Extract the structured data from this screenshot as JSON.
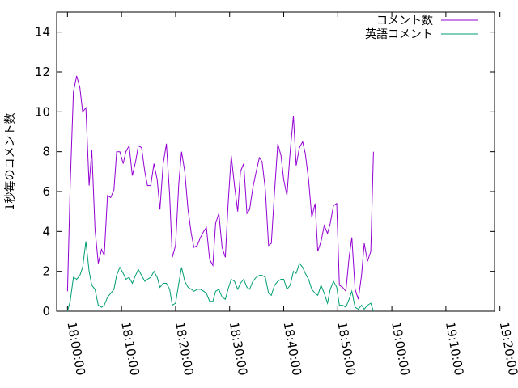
{
  "chart_data": {
    "type": "line",
    "title": "",
    "xlabel": "",
    "ylabel": "1秒毎のコメント数",
    "x_start": "18:00:00",
    "x_tick_labels": [
      "18:00:00",
      "18:10:00",
      "18:20:00",
      "18:30:00",
      "18:40:00",
      "18:50:00",
      "19:00:00",
      "19:10:00",
      "19:20:00"
    ],
    "x_range_minutes": [
      -2,
      79
    ],
    "y_tick_labels": [
      "0",
      "2",
      "4",
      "6",
      "8",
      "10",
      "12",
      "14"
    ],
    "ylim": [
      0,
      15
    ],
    "grid": false,
    "legend_position": "top-right",
    "series": [
      {
        "name": "コメント数",
        "color": "#9400d3",
        "values": [
          [
            0.0,
            1.0
          ],
          [
            0.5,
            6.3
          ],
          [
            1.1,
            11.0
          ],
          [
            1.7,
            11.8
          ],
          [
            2.3,
            11.2
          ],
          [
            2.8,
            10.0
          ],
          [
            3.4,
            10.2
          ],
          [
            4.0,
            6.3
          ],
          [
            4.5,
            8.1
          ],
          [
            5.1,
            4.1
          ],
          [
            5.7,
            2.4
          ],
          [
            6.3,
            3.1
          ],
          [
            6.8,
            2.8
          ],
          [
            7.4,
            5.8
          ],
          [
            8.0,
            5.7
          ],
          [
            8.6,
            6.1
          ],
          [
            9.1,
            8.0
          ],
          [
            9.7,
            8.0
          ],
          [
            10.3,
            7.4
          ],
          [
            10.8,
            8.0
          ],
          [
            11.4,
            8.3
          ],
          [
            12.0,
            6.8
          ],
          [
            12.6,
            7.5
          ],
          [
            13.1,
            8.3
          ],
          [
            13.7,
            8.2
          ],
          [
            14.3,
            7.0
          ],
          [
            14.8,
            6.3
          ],
          [
            15.4,
            6.3
          ],
          [
            16.0,
            7.4
          ],
          [
            16.6,
            6.6
          ],
          [
            17.1,
            5.1
          ],
          [
            17.7,
            7.4
          ],
          [
            18.3,
            8.4
          ],
          [
            18.9,
            5.8
          ],
          [
            19.4,
            2.7
          ],
          [
            20.0,
            3.3
          ],
          [
            20.6,
            6.4
          ],
          [
            21.1,
            8.0
          ],
          [
            21.7,
            7.0
          ],
          [
            22.3,
            5.1
          ],
          [
            22.9,
            3.9
          ],
          [
            23.4,
            3.2
          ],
          [
            24.0,
            3.3
          ],
          [
            24.6,
            3.7
          ],
          [
            25.2,
            4.0
          ],
          [
            25.7,
            4.2
          ],
          [
            26.3,
            2.6
          ],
          [
            26.9,
            2.3
          ],
          [
            27.4,
            4.4
          ],
          [
            28.0,
            4.9
          ],
          [
            28.6,
            3.2
          ],
          [
            29.2,
            2.7
          ],
          [
            29.7,
            5.3
          ],
          [
            30.3,
            7.8
          ],
          [
            30.9,
            6.3
          ],
          [
            31.5,
            5.0
          ],
          [
            32.0,
            7.0
          ],
          [
            32.6,
            7.4
          ],
          [
            33.2,
            4.9
          ],
          [
            33.7,
            5.1
          ],
          [
            34.3,
            6.2
          ],
          [
            34.9,
            7.0
          ],
          [
            35.5,
            7.7
          ],
          [
            36.0,
            7.5
          ],
          [
            36.6,
            6.1
          ],
          [
            37.2,
            3.3
          ],
          [
            37.7,
            3.4
          ],
          [
            38.3,
            6.0
          ],
          [
            38.9,
            8.4
          ],
          [
            39.5,
            7.8
          ],
          [
            40.0,
            6.6
          ],
          [
            40.6,
            5.8
          ],
          [
            41.2,
            8.0
          ],
          [
            41.8,
            9.8
          ],
          [
            42.3,
            7.3
          ],
          [
            42.9,
            8.2
          ],
          [
            43.5,
            8.5
          ],
          [
            44.0,
            7.9
          ],
          [
            44.6,
            6.6
          ],
          [
            45.2,
            4.7
          ],
          [
            45.8,
            5.4
          ],
          [
            46.3,
            3.0
          ],
          [
            46.9,
            3.5
          ],
          [
            47.5,
            4.3
          ],
          [
            48.1,
            3.9
          ],
          [
            48.6,
            4.4
          ],
          [
            49.2,
            5.3
          ],
          [
            49.8,
            5.4
          ],
          [
            50.3,
            1.3
          ],
          [
            50.9,
            1.2
          ],
          [
            51.5,
            1.0
          ],
          [
            52.1,
            2.7
          ],
          [
            52.6,
            3.7
          ],
          [
            53.2,
            1.1
          ],
          [
            53.8,
            0.6
          ],
          [
            54.4,
            1.8
          ],
          [
            54.9,
            3.4
          ],
          [
            55.5,
            2.5
          ],
          [
            56.1,
            3.0
          ],
          [
            56.6,
            8.0
          ]
        ]
      },
      {
        "name": "英語コメント",
        "color": "#009e73",
        "values": [
          [
            0.0,
            0.0
          ],
          [
            0.5,
            0.5
          ],
          [
            1.1,
            1.7
          ],
          [
            1.7,
            1.6
          ],
          [
            2.3,
            1.8
          ],
          [
            2.8,
            2.2
          ],
          [
            3.4,
            3.5
          ],
          [
            4.0,
            2.0
          ],
          [
            4.5,
            1.3
          ],
          [
            5.1,
            1.1
          ],
          [
            5.7,
            0.3
          ],
          [
            6.3,
            0.2
          ],
          [
            6.8,
            0.3
          ],
          [
            7.4,
            0.7
          ],
          [
            8.0,
            0.9
          ],
          [
            8.6,
            1.1
          ],
          [
            9.1,
            1.8
          ],
          [
            9.7,
            2.2
          ],
          [
            10.3,
            1.9
          ],
          [
            10.8,
            1.6
          ],
          [
            11.4,
            1.7
          ],
          [
            12.0,
            1.4
          ],
          [
            12.6,
            1.8
          ],
          [
            13.1,
            2.1
          ],
          [
            13.7,
            1.8
          ],
          [
            14.3,
            1.5
          ],
          [
            14.8,
            1.6
          ],
          [
            15.4,
            1.7
          ],
          [
            16.0,
            2.0
          ],
          [
            16.6,
            1.7
          ],
          [
            17.1,
            1.2
          ],
          [
            17.7,
            1.4
          ],
          [
            18.3,
            1.4
          ],
          [
            18.9,
            1.1
          ],
          [
            19.4,
            0.3
          ],
          [
            20.0,
            0.4
          ],
          [
            20.6,
            1.4
          ],
          [
            21.1,
            2.2
          ],
          [
            21.7,
            1.5
          ],
          [
            22.3,
            1.2
          ],
          [
            22.9,
            1.1
          ],
          [
            23.4,
            1.0
          ],
          [
            24.0,
            1.1
          ],
          [
            24.6,
            1.1
          ],
          [
            25.2,
            1.0
          ],
          [
            25.7,
            0.9
          ],
          [
            26.3,
            0.5
          ],
          [
            26.9,
            0.5
          ],
          [
            27.4,
            1.0
          ],
          [
            28.0,
            1.1
          ],
          [
            28.6,
            0.7
          ],
          [
            29.2,
            0.6
          ],
          [
            29.7,
            1.1
          ],
          [
            30.3,
            1.6
          ],
          [
            30.9,
            1.5
          ],
          [
            31.5,
            1.1
          ],
          [
            32.0,
            1.4
          ],
          [
            32.6,
            1.6
          ],
          [
            33.2,
            1.2
          ],
          [
            33.7,
            1.1
          ],
          [
            34.3,
            1.5
          ],
          [
            34.9,
            1.7
          ],
          [
            35.5,
            1.8
          ],
          [
            36.0,
            1.8
          ],
          [
            36.6,
            1.7
          ],
          [
            37.2,
            0.9
          ],
          [
            37.7,
            0.8
          ],
          [
            38.3,
            1.3
          ],
          [
            38.9,
            1.5
          ],
          [
            39.5,
            1.6
          ],
          [
            40.0,
            1.6
          ],
          [
            40.6,
            1.1
          ],
          [
            41.2,
            1.3
          ],
          [
            41.8,
            2.0
          ],
          [
            42.3,
            1.9
          ],
          [
            42.9,
            2.4
          ],
          [
            43.5,
            2.2
          ],
          [
            44.0,
            1.9
          ],
          [
            44.6,
            1.6
          ],
          [
            45.2,
            1.1
          ],
          [
            45.8,
            0.9
          ],
          [
            46.3,
            0.8
          ],
          [
            46.9,
            1.3
          ],
          [
            47.5,
            0.9
          ],
          [
            48.1,
            0.4
          ],
          [
            48.6,
            1.1
          ],
          [
            49.2,
            1.5
          ],
          [
            49.8,
            1.2
          ],
          [
            50.3,
            0.3
          ],
          [
            50.9,
            0.3
          ],
          [
            51.5,
            0.2
          ],
          [
            52.1,
            0.6
          ],
          [
            52.6,
            1.0
          ],
          [
            53.2,
            0.2
          ],
          [
            53.8,
            0.1
          ],
          [
            54.4,
            0.3
          ],
          [
            54.9,
            0.1
          ],
          [
            55.5,
            0.3
          ],
          [
            56.1,
            0.4
          ],
          [
            56.6,
            0.0
          ]
        ]
      }
    ]
  }
}
